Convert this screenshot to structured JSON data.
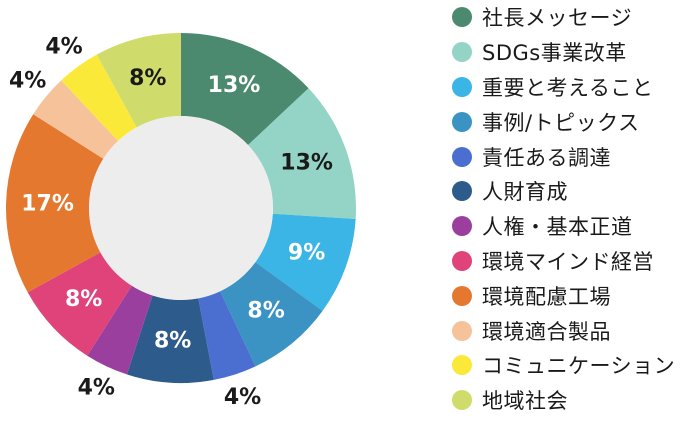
{
  "chart_data": {
    "type": "pie",
    "donut": true,
    "title": "",
    "legend_position": "right",
    "slices": [
      {
        "label": "社長メッセージ",
        "value": 13,
        "display": "13%",
        "color": "#4b8a6e",
        "text_color": "#ffffff"
      },
      {
        "label": "SDGs事業改革",
        "value": 13,
        "display": "13%",
        "color": "#93d4c6",
        "text_color": "#1a1a1a"
      },
      {
        "label": "重要と考えること",
        "value": 9,
        "display": "9%",
        "color": "#3ab5e6",
        "text_color": "#ffffff"
      },
      {
        "label": "事例/トピックス",
        "value": 8,
        "display": "8%",
        "color": "#3a93c2",
        "text_color": "#ffffff"
      },
      {
        "label": "責任ある調達",
        "value": 4,
        "display": "4%",
        "color": "#4a6fd0",
        "text_color": "#1a1a1a"
      },
      {
        "label": "人財育成",
        "value": 8,
        "display": "8%",
        "color": "#2c5b8c",
        "text_color": "#ffffff"
      },
      {
        "label": "人権・基本正道",
        "value": 4,
        "display": "4%",
        "color": "#9b3f9e",
        "text_color": "#1a1a1a"
      },
      {
        "label": "環境マインド経営",
        "value": 8,
        "display": "8%",
        "color": "#e0437a",
        "text_color": "#ffffff"
      },
      {
        "label": "環境配慮工場",
        "value": 17,
        "display": "17%",
        "color": "#e5782f",
        "text_color": "#ffffff"
      },
      {
        "label": "環境適合製品",
        "value": 4,
        "display": "4%",
        "color": "#f5c29a",
        "text_color": "#1a1a1a"
      },
      {
        "label": "コミュニケーション",
        "value": 4,
        "display": "4%",
        "color": "#fbe93a",
        "text_color": "#1a1a1a"
      },
      {
        "label": "地域社会",
        "value": 8,
        "display": "8%",
        "color": "#cfdc6b",
        "text_color": "#1a1a1a"
      }
    ]
  }
}
